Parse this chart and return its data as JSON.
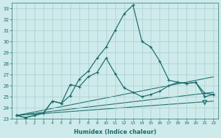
{
  "xlabel": "Humidex (Indice chaleur)",
  "xlim": [
    -0.5,
    22.5
  ],
  "ylim": [
    23,
    33.5
  ],
  "yticks": [
    23,
    24,
    25,
    26,
    27,
    28,
    29,
    30,
    31,
    32,
    33
  ],
  "xticks": [
    0,
    1,
    2,
    3,
    4,
    5,
    6,
    7,
    8,
    9,
    10,
    11,
    12,
    13,
    14,
    15,
    16,
    17,
    18,
    19,
    20,
    21,
    22
  ],
  "bg_color": "#ceeaea",
  "grid_color": "#a8cece",
  "line_color": "#1a6b6b",
  "series1_x": [
    0,
    1,
    2,
    3,
    4,
    5,
    6,
    7,
    8,
    9,
    10,
    11,
    12,
    13,
    14,
    15,
    16,
    17,
    18,
    19,
    20,
    21,
    22
  ],
  "series1_y": [
    23.3,
    23.1,
    23.3,
    23.5,
    24.6,
    24.4,
    25.1,
    26.6,
    27.3,
    28.5,
    29.5,
    31.0,
    32.5,
    33.3,
    30.0,
    29.5,
    28.2,
    26.5,
    26.3,
    26.2,
    26.3,
    25.0,
    25.2
  ],
  "series2_x": [
    0,
    1,
    2,
    3,
    4,
    5,
    6,
    7,
    8,
    9,
    10,
    11,
    12,
    13,
    14,
    15,
    16,
    17,
    18,
    19,
    20,
    21,
    22
  ],
  "series2_y": [
    23.3,
    23.1,
    23.3,
    23.5,
    24.6,
    24.4,
    26.1,
    25.9,
    26.8,
    27.2,
    28.5,
    27.1,
    25.8,
    25.4,
    25.0,
    25.2,
    25.5,
    26.0,
    26.3,
    26.2,
    26.3,
    25.3,
    25.2
  ],
  "line1_x": [
    0,
    22
  ],
  "line1_y": [
    23.3,
    26.8
  ],
  "line2_x": [
    0,
    22
  ],
  "line2_y": [
    23.3,
    25.4
  ],
  "line3_x": [
    0,
    22
  ],
  "line3_y": [
    23.3,
    24.6
  ],
  "triangle_x": 21,
  "triangle_y": 24.5
}
